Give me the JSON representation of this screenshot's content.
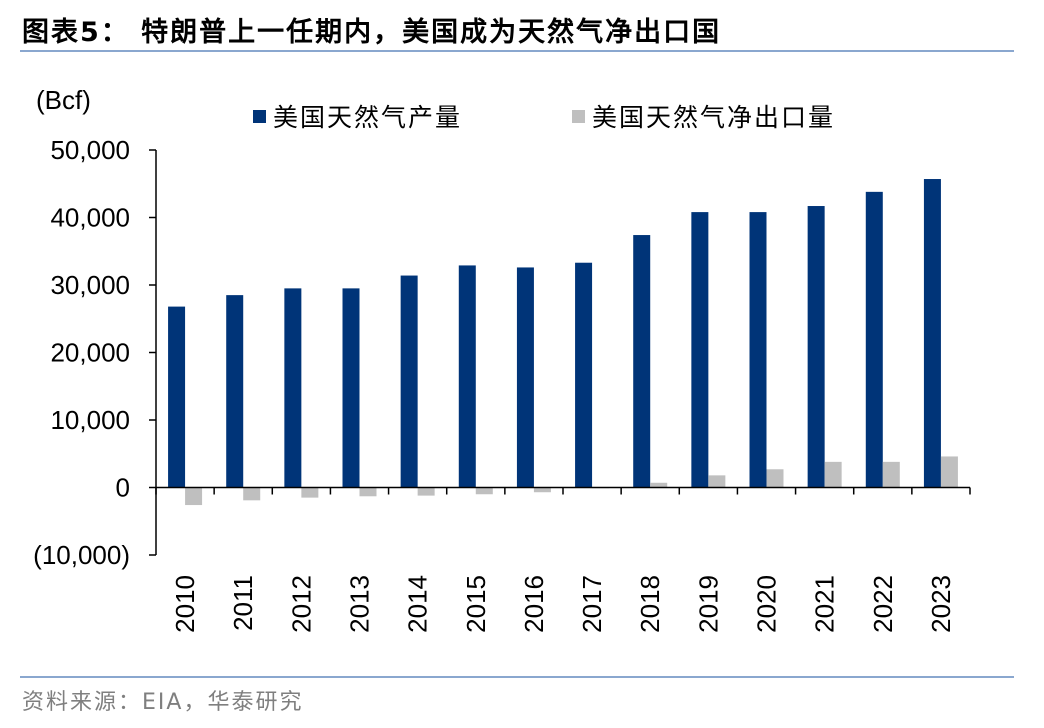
{
  "header": {
    "title": "图表5： 特朗普上一任期内，美国成为天然气净出口国"
  },
  "footer": {
    "source": "资料来源：EIA，华泰研究"
  },
  "chart_data": {
    "type": "bar",
    "unit_label": "(Bcf)",
    "categories": [
      "2010",
      "2011",
      "2012",
      "2013",
      "2014",
      "2015",
      "2016",
      "2017",
      "2018",
      "2019",
      "2020",
      "2021",
      "2022",
      "2023"
    ],
    "series": [
      {
        "name": "美国天然气产量",
        "color": "#003478",
        "values": [
          26800,
          28500,
          29500,
          29500,
          31400,
          32900,
          32600,
          33300,
          37400,
          40800,
          40800,
          41700,
          43800,
          45700
        ]
      },
      {
        "name": "美国天然气净出口量",
        "color": "#bfbfbf",
        "values": [
          -2600,
          -1900,
          -1500,
          -1300,
          -1200,
          -1000,
          -700,
          -100,
          700,
          1800,
          2700,
          3800,
          3800,
          4600
        ]
      }
    ],
    "yticks": [
      -10000,
      0,
      10000,
      20000,
      30000,
      40000,
      50000
    ],
    "ytick_labels": [
      "(10,000)",
      "0",
      "10,000",
      "20,000",
      "30,000",
      "40,000",
      "50,000"
    ],
    "ylim": [
      -10000,
      50000
    ],
    "legend_position": "top"
  }
}
